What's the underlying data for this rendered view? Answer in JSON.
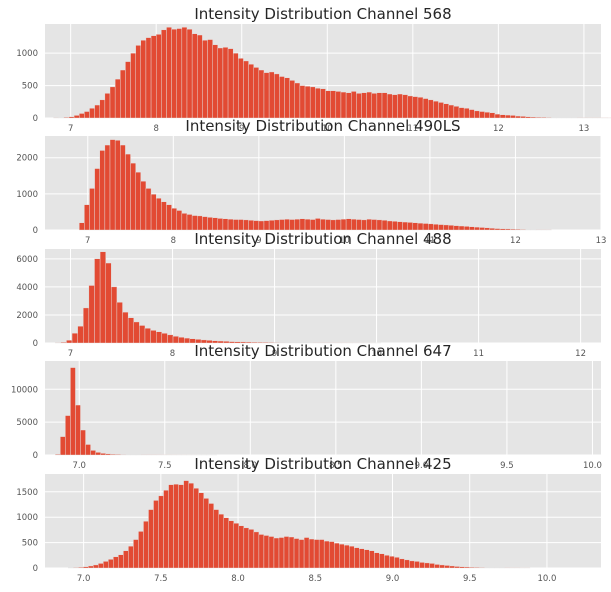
{
  "chart_data": [
    {
      "type": "bar",
      "title": "Intensity Distribution Channel 568",
      "xlim": [
        6.7,
        13.2
      ],
      "ylim": [
        0,
        1450
      ],
      "xticks": [
        7,
        8,
        9,
        10,
        11,
        12,
        13
      ],
      "yticks": [
        0,
        500,
        1000
      ],
      "grid": true,
      "bin_start": 6.8,
      "bin_width": 0.06,
      "values": [
        3,
        5,
        10,
        20,
        40,
        70,
        100,
        150,
        200,
        280,
        380,
        480,
        600,
        740,
        870,
        1000,
        1120,
        1200,
        1240,
        1270,
        1290,
        1360,
        1400,
        1370,
        1380,
        1400,
        1370,
        1300,
        1280,
        1200,
        1210,
        1130,
        1080,
        1090,
        1070,
        1000,
        920,
        880,
        830,
        780,
        740,
        700,
        710,
        680,
        640,
        620,
        580,
        540,
        500,
        490,
        480,
        460,
        450,
        420,
        420,
        410,
        400,
        390,
        410,
        380,
        390,
        400,
        380,
        390,
        390,
        370,
        360,
        370,
        360,
        340,
        330,
        320,
        300,
        280,
        260,
        240,
        220,
        200,
        180,
        160,
        150,
        130,
        110,
        100,
        90,
        80,
        60,
        50,
        45,
        40,
        30,
        25,
        20,
        15,
        12,
        10,
        8,
        6,
        5,
        5,
        4,
        4,
        3,
        3,
        2,
        2,
        2,
        2,
        1,
        1
      ]
    },
    {
      "type": "bar",
      "title": "Intensity Distribution Channel 490LS",
      "xlim": [
        6.5,
        13.0
      ],
      "ylim": [
        0,
        2600
      ],
      "xticks": [
        7,
        8,
        9,
        10,
        11,
        12,
        13
      ],
      "yticks": [
        0,
        1000,
        2000
      ],
      "grid": true,
      "bin_start": 6.9,
      "bin_width": 0.06,
      "values": [
        200,
        700,
        1150,
        1700,
        2200,
        2350,
        2500,
        2480,
        2350,
        2100,
        1850,
        1600,
        1350,
        1150,
        990,
        880,
        780,
        700,
        600,
        540,
        460,
        430,
        400,
        390,
        370,
        350,
        340,
        320,
        310,
        300,
        290,
        290,
        280,
        270,
        260,
        250,
        260,
        270,
        280,
        290,
        300,
        290,
        300,
        310,
        300,
        290,
        320,
        300,
        290,
        280,
        290,
        300,
        310,
        300,
        290,
        280,
        300,
        290,
        280,
        270,
        250,
        240,
        230,
        220,
        210,
        200,
        190,
        180,
        170,
        160,
        150,
        140,
        130,
        120,
        110,
        100,
        90,
        80,
        70,
        60,
        50,
        40,
        35,
        30,
        25,
        20,
        15,
        10,
        8,
        5,
        4,
        3
      ]
    },
    {
      "type": "bar",
      "title": "Intensity Distribution Channel 488",
      "xlim": [
        6.75,
        12.2
      ],
      "ylim": [
        0,
        6700
      ],
      "xticks": [
        7,
        8,
        9,
        10,
        11,
        12
      ],
      "yticks": [
        0,
        2000,
        4000,
        6000
      ],
      "grid": true,
      "bin_start": 6.85,
      "bin_width": 0.055,
      "values": [
        10,
        50,
        200,
        700,
        1200,
        2500,
        4100,
        6000,
        6500,
        5700,
        4000,
        2900,
        2200,
        1800,
        1500,
        1250,
        1050,
        900,
        800,
        690,
        580,
        480,
        410,
        350,
        300,
        260,
        220,
        190,
        160,
        140,
        120,
        100,
        90,
        80,
        70,
        60,
        50,
        45,
        40,
        35,
        30,
        25,
        22,
        20,
        18,
        16,
        14,
        12,
        10,
        8,
        7,
        6,
        5,
        4,
        3,
        2,
        2,
        1
      ]
    },
    {
      "type": "bar",
      "title": "Intensity Distribution Channel 647",
      "xlim": [
        6.8,
        10.05
      ],
      "ylim": [
        0,
        14300
      ],
      "xticks": [
        7.0,
        7.5,
        8.0,
        8.5,
        9.0,
        9.5,
        10.0
      ],
      "xtick_labels": [
        "7.0",
        "7.5",
        "8.0",
        "8.5",
        "9.0",
        "9.5",
        "10.0"
      ],
      "yticks": [
        0,
        5000,
        10000
      ],
      "grid": true,
      "bin_start": 6.86,
      "bin_width": 0.0295,
      "values": [
        100,
        2800,
        6000,
        13300,
        7600,
        3800,
        1600,
        700,
        400,
        250,
        170,
        120,
        90,
        70,
        55,
        45,
        35,
        30,
        25,
        20,
        16,
        12,
        10,
        8,
        6,
        5,
        4,
        3,
        2,
        2,
        1,
        1
      ]
    },
    {
      "type": "bar",
      "title": "Intensity Distribution Channel 425",
      "xlim": [
        6.75,
        10.35
      ],
      "ylim": [
        0,
        1850
      ],
      "xticks": [
        7.0,
        7.5,
        8.0,
        8.5,
        9.0,
        9.5,
        10.0
      ],
      "xtick_labels": [
        "7.0",
        "7.5",
        "8.0",
        "8.5",
        "9.0",
        "9.5",
        "10.0"
      ],
      "yticks": [
        0,
        500,
        1000,
        1500
      ],
      "grid": true,
      "bin_start": 6.9,
      "bin_width": 0.0325,
      "values": [
        5,
        10,
        15,
        25,
        40,
        60,
        90,
        130,
        170,
        220,
        260,
        340,
        430,
        560,
        720,
        920,
        1150,
        1330,
        1420,
        1530,
        1640,
        1650,
        1640,
        1720,
        1670,
        1570,
        1480,
        1370,
        1270,
        1150,
        1060,
        990,
        930,
        880,
        830,
        790,
        760,
        710,
        660,
        640,
        620,
        590,
        600,
        620,
        610,
        580,
        560,
        600,
        570,
        560,
        560,
        530,
        520,
        490,
        470,
        450,
        430,
        400,
        380,
        360,
        340,
        300,
        280,
        250,
        230,
        210,
        180,
        160,
        140,
        130,
        110,
        100,
        90,
        70,
        60,
        50,
        40,
        30,
        25,
        20,
        15,
        12,
        10,
        8,
        6,
        5,
        4,
        3,
        2,
        2,
        1,
        1
      ]
    }
  ],
  "style": {
    "axes_background": "#e5e5e5",
    "grid_color": "#ffffff",
    "bar_color": "#e24a33",
    "text_color": "#262626",
    "tick_color": "#555555"
  }
}
